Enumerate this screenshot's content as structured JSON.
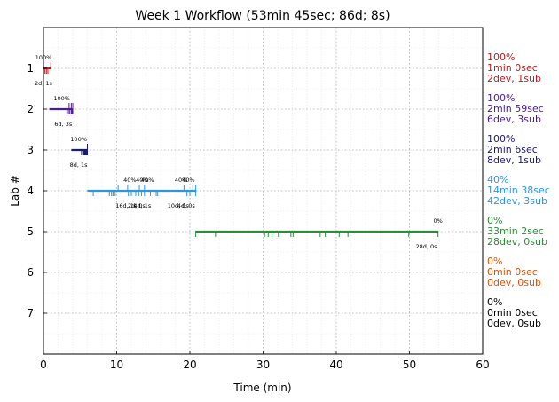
{
  "chart_data": {
    "type": "timeline",
    "title": "Week 1 Workflow (53min 45sec; 86d; 8s)",
    "xlabel": "Time (min)",
    "ylabel": "Lab #",
    "xlim": [
      0,
      60
    ],
    "ylim": [
      8,
      0
    ],
    "xticks": [
      "0",
      "10",
      "20",
      "30",
      "40",
      "50",
      "60"
    ],
    "yticks": [
      "1",
      "2",
      "3",
      "4",
      "5",
      "6",
      "7"
    ],
    "grid": true,
    "labs": [
      {
        "lab": 1,
        "color": "#b22222",
        "start": 0.0,
        "end": 1.0,
        "dev_ticks": [
          0.2,
          0.4,
          0.6
        ],
        "sub_ticks": [
          1.0
        ],
        "pct_labels": [
          {
            "x": 0.0,
            "text": "100%"
          }
        ],
        "dur_labels": [
          {
            "x": 0.0,
            "text": "2d, 1s"
          }
        ],
        "summary": [
          "100%",
          "1min 0sec",
          "2dev, 1sub"
        ]
      },
      {
        "lab": 2,
        "color": "#4b1c8c",
        "start": 0.8,
        "end": 3.8,
        "dev_ticks": [
          3.2,
          3.4,
          3.6,
          3.8,
          3.9,
          4.0
        ],
        "sub_ticks": [
          3.5,
          3.8,
          4.0
        ],
        "pct_labels": [
          {
            "x": 2.5,
            "text": "100%"
          }
        ],
        "dur_labels": [
          {
            "x": 2.7,
            "text": "6d, 3s"
          }
        ],
        "summary": [
          "100%",
          "2min 59sec",
          "6dev, 3sub"
        ]
      },
      {
        "lab": 3,
        "color": "#1a1a6e",
        "start": 3.8,
        "end": 6.0,
        "dev_ticks": [
          5.2,
          5.4,
          5.6,
          5.8,
          6.0,
          5.5,
          5.7,
          5.9
        ],
        "sub_ticks": [
          6.0
        ],
        "pct_labels": [
          {
            "x": 4.8,
            "text": "100%"
          }
        ],
        "dur_labels": [
          {
            "x": 4.8,
            "text": "8d, 1s"
          }
        ],
        "summary": [
          "100%",
          "2min 6sec",
          "8dev, 1sub"
        ]
      },
      {
        "lab": 4,
        "color": "#2a96e6",
        "start": 6.0,
        "end": 20.8,
        "dev_ticks": [
          6.8,
          9.0,
          9.3,
          9.5,
          9.8,
          11.6,
          12.0,
          12.6,
          13.0,
          13.4,
          13.8,
          14.6,
          15.1,
          15.4,
          15.6,
          19.6,
          20.0,
          20.8
        ],
        "sub_ticks": [
          10.2,
          11.5,
          13.1,
          13.8,
          19.2,
          20.4,
          20.8
        ],
        "pct_labels": [
          {
            "x": 11.8,
            "text": "40%"
          },
          {
            "x": 13.5,
            "text": "40%"
          },
          {
            "x": 14.2,
            "text": "40%"
          },
          {
            "x": 18.8,
            "text": "40%"
          },
          {
            "x": 19.8,
            "text": "40%"
          }
        ],
        "dur_labels": [
          {
            "x": 11.3,
            "text": "16d, 1s"
          },
          {
            "x": 12.7,
            "text": "2d, 0s"
          },
          {
            "x": 13.5,
            "text": "4d, 1s"
          },
          {
            "x": 18.4,
            "text": "10d, 0s"
          },
          {
            "x": 19.5,
            "text": "4d, 0s"
          }
        ],
        "summary": [
          "40%",
          "14min 38sec",
          "42dev, 3sub"
        ]
      },
      {
        "lab": 5,
        "color": "#2e8b3a",
        "start": 20.8,
        "end": 53.9,
        "dev_ticks": [
          20.8,
          23.5,
          30.2,
          30.7,
          31.2,
          32.1,
          33.8,
          34.1,
          37.8,
          38.5,
          40.4,
          41.6,
          49.9,
          53.9
        ],
        "sub_ticks": [],
        "pct_labels": [
          {
            "x": 53.9,
            "text": "0%"
          }
        ],
        "dur_labels": [
          {
            "x": 52.3,
            "text": "28d, 0s"
          }
        ],
        "summary": [
          "0%",
          "33min 2sec",
          "28dev, 0sub"
        ]
      },
      {
        "lab": 6,
        "color": "#d2560a",
        "start": null,
        "end": null,
        "dev_ticks": [],
        "sub_ticks": [],
        "pct_labels": [],
        "dur_labels": [],
        "summary": [
          "0%",
          "0min 0sec",
          "0dev, 0sub"
        ]
      },
      {
        "lab": 7,
        "color": "#000000",
        "start": null,
        "end": null,
        "dev_ticks": [],
        "sub_ticks": [],
        "pct_labels": [],
        "dur_labels": [],
        "summary": [
          "0%",
          "0min 0sec",
          "0dev, 0sub"
        ]
      }
    ]
  }
}
